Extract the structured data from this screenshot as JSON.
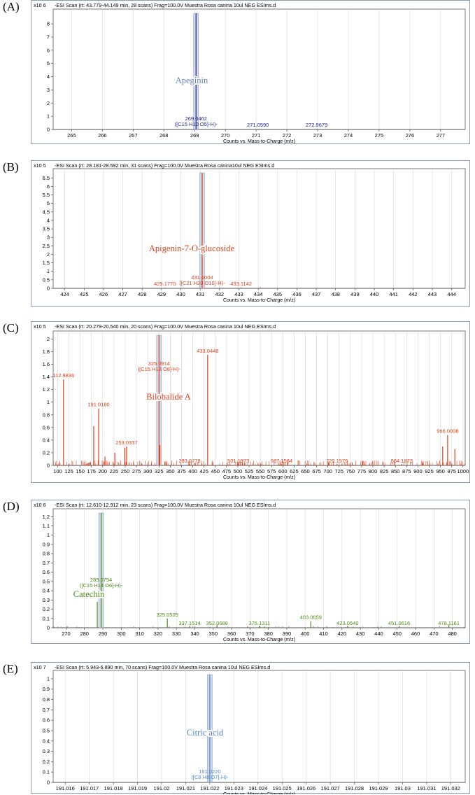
{
  "panels": [
    {
      "label": "(A)",
      "header": "-ESI Scan (rt: 43.779-44.149 min, 28 scans) Frag=100.0V Muestra Rosa canina 10ul NEG ESIms.d",
      "scale": "x10 6",
      "compound": "Apeginin",
      "compound_color": "#6d7fc4",
      "color": "#1f1f8a"
    },
    {
      "label": "(B)",
      "header": "-ESI Scan (rt: 28.181-28.592 min, 31 scans) Frag=100.0V Muestra Rosa canina10ul NEG ESIms.d",
      "scale": "x10 5",
      "compound": "Apigenin-7-O-glucoside",
      "compound_color": "#e0401c",
      "color": "#e0401c"
    },
    {
      "label": "(C)",
      "header": "-ESI Scan (rt: 20.279-20.540 min, 20 scans) Frag=100.0V Muestra Rosa canina 10ul NEG ESIms.d",
      "scale": "x10 5",
      "compound": "Bilobalide A",
      "compound_color": "#e0401c",
      "color": "#e0401c"
    },
    {
      "label": "(D)",
      "header": "-ESI Scan (rt: 12.610-12.912 min, 23 scans) Frag=100.0V Muestra Rosa canina 10ul NEG ESIms.d",
      "scale": "x10 6",
      "compound": "Catechin",
      "compound_color": "#4e8a14",
      "color": "#4e8a14"
    },
    {
      "label": "(E)",
      "header": "-ESI Scan (rt: 5.943-6.890 min, 70 scans) Frag=100.0V Muestra Rosa canina 10ul NEG ESIms.d",
      "scale": "x10 7",
      "compound": "Citric acid",
      "compound_color": "#4f86c6",
      "color": "#4f86c6"
    }
  ],
  "chart_data": [
    {
      "type": "bar",
      "title": "-ESI Scan (rt: 43.779-44.149 min, 28 scans) Frag=100.0V Muestra Rosa canina 10ul NEG ESIms.d",
      "xlabel": "Counts vs. Mass-to-Charge (m/z)",
      "ylabel": "x10 6",
      "xlim": [
        264.4,
        277.8
      ],
      "ylim": [
        0,
        8.8
      ],
      "xticks": [
        "265",
        "266",
        "267",
        "268",
        "269",
        "270",
        "271",
        "272",
        "273",
        "274",
        "275",
        "276",
        "277"
      ],
      "yticks": [
        "0",
        "1",
        "2",
        "3",
        "4",
        "5",
        "6",
        "7",
        "8"
      ],
      "grid": true,
      "series": [
        {
          "points": [
            {
              "x": 269.0462,
              "y": 8.8,
              "label": "269.0462",
              "sub": "([C15 H10 O5]-H)-"
            },
            {
              "x": 271.059,
              "y": 0.03,
              "label": "271.0590"
            },
            {
              "x": 272.9679,
              "y": 0.03,
              "label": "272.9679"
            }
          ]
        }
      ],
      "annotations": [
        "Apeginin"
      ]
    },
    {
      "type": "bar",
      "title": "-ESI Scan (rt: 28.181-28.592 min, 31 scans) Frag=100.0V Muestra Rosa canina10ul NEG ESIms.d",
      "xlabel": "Counts vs. Mass-to-Charge (m/z)",
      "ylabel": "x10 5",
      "xlim": [
        423.4,
        444.7
      ],
      "ylim": [
        0,
        6.8
      ],
      "xticks": [
        "424",
        "425",
        "426",
        "427",
        "428",
        "429",
        "430",
        "431",
        "432",
        "433",
        "434",
        "435",
        "436",
        "437",
        "438",
        "439",
        "440",
        "441",
        "442",
        "443",
        "444"
      ],
      "yticks": [
        "0",
        "0.5",
        "1",
        "1.5",
        "2",
        "2.5",
        "3",
        "3.5",
        "4",
        "4.5",
        "5",
        "5.5",
        "6",
        "6.5"
      ],
      "grid": true,
      "series": [
        {
          "points": [
            {
              "x": 429.177,
              "y": 0.04,
              "label": "429.1770"
            },
            {
              "x": 431.1004,
              "y": 6.8,
              "label": "431.1004",
              "sub": "([C21 H20 O10]-H)-"
            },
            {
              "x": 433.1142,
              "y": 0.04,
              "label": "433.1142"
            },
            {
              "x": 434.1,
              "y": 0.06,
              "label": ""
            }
          ]
        }
      ],
      "annotations": [
        "Apigenin-7-O-glucoside"
      ]
    },
    {
      "type": "bar",
      "title": "-ESI Scan (rt: 20.279-20.540 min, 20 scans) Frag=100.0V Muestra Rosa canina 10ul NEG ESIms.d",
      "xlabel": "Counts vs. Mass-to-Charge (m/z)",
      "ylabel": "x10 5",
      "xlim": [
        90,
        1005
      ],
      "ylim": [
        0,
        2.06
      ],
      "xticks": [
        "100",
        "125",
        "150",
        "175",
        "200",
        "225",
        "250",
        "275",
        "300",
        "325",
        "350",
        "375",
        "400",
        "425",
        "450",
        "475",
        "500",
        "525",
        "550",
        "575",
        "600",
        "625",
        "650",
        "675",
        "700",
        "725",
        "750",
        "775",
        "800",
        "825",
        "850",
        "875",
        "900",
        "925",
        "950",
        "975",
        "1000"
      ],
      "yticks": [
        "0",
        "0.2",
        "0.4",
        "0.6",
        "0.8",
        "1",
        "1.2",
        "1.4",
        "1.6",
        "1.8",
        "2"
      ],
      "grid": true,
      "series": [
        {
          "points": [
            {
              "x": 112.9836,
              "y": 1.36,
              "label": "112.9836"
            },
            {
              "x": 180.0,
              "y": 0.62,
              "label": ""
            },
            {
              "x": 191.018,
              "y": 0.9,
              "label": "191.0180"
            },
            {
              "x": 205.0,
              "y": 0.14,
              "label": ""
            },
            {
              "x": 227.0,
              "y": 0.2,
              "label": ""
            },
            {
              "x": 249.0,
              "y": 0.28,
              "label": ""
            },
            {
              "x": 253.0337,
              "y": 0.3,
              "label": "253.0337"
            },
            {
              "x": 325.0914,
              "y": 2.06,
              "label": "325.0914",
              "sub": "([C15 H18 O8]-H)-"
            },
            {
              "x": 327.0,
              "y": 0.32,
              "label": ""
            },
            {
              "x": 393.0778,
              "y": 0.02,
              "label": "393.0778"
            },
            {
              "x": 433.0448,
              "y": 1.75,
              "label": "433.0448"
            },
            {
              "x": 501.1973,
              "y": 0.03,
              "label": "501.1973"
            },
            {
              "x": 597.1584,
              "y": 0.02,
              "label": "597.1584"
            },
            {
              "x": 720.1576,
              "y": 0.02,
              "label": "720.1576"
            },
            {
              "x": 864.1873,
              "y": 0.02,
              "label": "864.1873"
            },
            {
              "x": 955.0,
              "y": 0.3,
              "label": ""
            },
            {
              "x": 966.0008,
              "y": 0.48,
              "label": "966.0008"
            },
            {
              "x": 982.0,
              "y": 0.26,
              "label": ""
            }
          ]
        }
      ],
      "annotations": [
        "Bilobalide A"
      ]
    },
    {
      "type": "bar",
      "title": "-ESI Scan (rt: 12.610-12.912 min, 23 scans) Frag=100.0V Muestra Rosa canina 10ul NEG ESIms.d",
      "xlabel": "Counts vs. Mass-to-Charge (m/z)",
      "ylabel": "x10 6",
      "xlim": [
        263,
        487
      ],
      "ylim": [
        0,
        1.24
      ],
      "xticks": [
        "270",
        "280",
        "290",
        "300",
        "310",
        "320",
        "330",
        "340",
        "350",
        "360",
        "370",
        "380",
        "390",
        "400",
        "410",
        "420",
        "430",
        "440",
        "450",
        "460",
        "470",
        "480"
      ],
      "yticks": [
        "0",
        "0.1",
        "0.2",
        "0.3",
        "0.4",
        "0.5",
        "0.6",
        "0.7",
        "0.8",
        "0.9",
        "1",
        "1.1",
        "1.2"
      ],
      "grid": true,
      "series": [
        {
          "points": [
            {
              "x": 287.0,
              "y": 0.28,
              "label": ""
            },
            {
              "x": 289.0754,
              "y": 1.24,
              "label": "289.0754",
              "sub": "([C15 H14 O6]-H)-"
            },
            {
              "x": 325.0505,
              "y": 0.1,
              "label": "325.0505"
            },
            {
              "x": 337.1514,
              "y": 0.02,
              "label": "337.1514"
            },
            {
              "x": 352.0688,
              "y": 0.03,
              "label": "352.0688"
            },
            {
              "x": 375.1311,
              "y": 0.02,
              "label": "375.1311"
            },
            {
              "x": 403.0659,
              "y": 0.07,
              "label": "403.0659"
            },
            {
              "x": 423.054,
              "y": 0.02,
              "label": "423.0540"
            },
            {
              "x": 451.0616,
              "y": 0.02,
              "label": "451.0616"
            },
            {
              "x": 478.1161,
              "y": 0.03,
              "label": "478.1161"
            }
          ]
        }
      ],
      "annotations": [
        "Catechin"
      ]
    },
    {
      "type": "bar",
      "title": "-ESI Scan (rt: 5.943-6.890 min, 70 scans) Frag=100.0V Muestra Rosa canina 10ul NEG ESIms.d",
      "xlabel": "Counts vs. Mass-to-Charge (m/z)",
      "ylabel": "x10 7",
      "xlim": [
        191.0155,
        191.0326
      ],
      "ylim": [
        0,
        1.04
      ],
      "xticks": [
        "191.016",
        "191.017",
        "191.018",
        "191.019",
        "191.02",
        "191.021",
        "191.022",
        "191.023",
        "191.024",
        "191.025",
        "191.026",
        "191.027",
        "191.028",
        "191.029",
        "191.03",
        "191.031",
        "191.032"
      ],
      "yticks": [
        "0",
        "0.1",
        "0.2",
        "0.3",
        "0.4",
        "0.5",
        "0.6",
        "0.7",
        "0.8",
        "0.9",
        "1"
      ],
      "grid": true,
      "series": [
        {
          "points": [
            {
              "x": 191.022,
              "y": 1.04,
              "label": "191.0220",
              "sub": "([C6 H8 O7]-H)-"
            }
          ]
        }
      ],
      "annotations": [
        "Citric acid"
      ]
    }
  ]
}
